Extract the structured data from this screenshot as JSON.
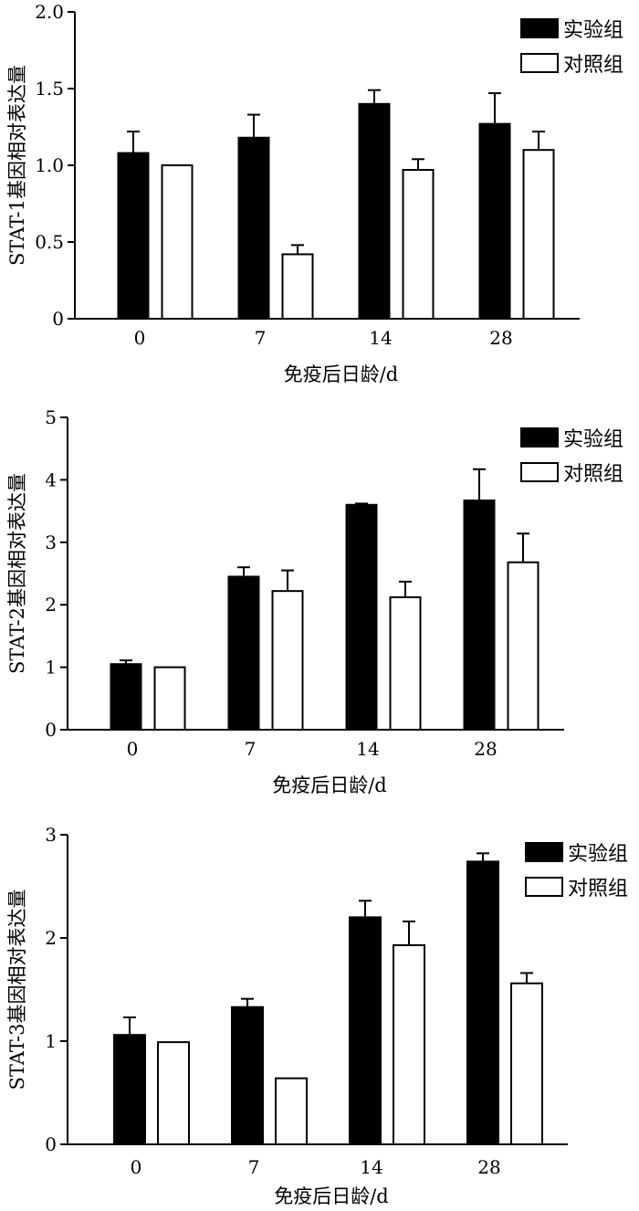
{
  "chart_data": [
    {
      "type": "bar",
      "ylabel": "STAT-1基因相对表达量",
      "xlabel": "免疫后日龄/d",
      "categories": [
        "0",
        "7",
        "14",
        "28"
      ],
      "ylim": [
        0,
        2.0
      ],
      "yticks": [
        0,
        0.5,
        1.0,
        1.5,
        2.0
      ],
      "ytick_labels": [
        "0",
        "0.5",
        "1.0",
        "1.5",
        "2.0"
      ],
      "legend": {
        "position": "top-right"
      },
      "series": [
        {
          "name": "实验组",
          "color": "#000000",
          "fill": "solid",
          "values": [
            1.08,
            1.18,
            1.4,
            1.27
          ],
          "errors": [
            0.14,
            0.15,
            0.09,
            0.2
          ]
        },
        {
          "name": "对照组",
          "color": "#000000",
          "fill": "hollow",
          "values": [
            1.0,
            0.42,
            0.97,
            1.1
          ],
          "errors": [
            0.0,
            0.06,
            0.07,
            0.12
          ]
        }
      ]
    },
    {
      "type": "bar",
      "ylabel": "STAT-2基因相对表达量",
      "xlabel": "免疫后日龄/d",
      "categories": [
        "0",
        "7",
        "14",
        "28"
      ],
      "ylim": [
        0,
        5
      ],
      "yticks": [
        0,
        1,
        2,
        3,
        4,
        5
      ],
      "ytick_labels": [
        "0",
        "1",
        "2",
        "3",
        "4",
        "5"
      ],
      "legend": {
        "position": "top-right"
      },
      "series": [
        {
          "name": "实验组",
          "color": "#000000",
          "fill": "solid",
          "values": [
            1.05,
            2.45,
            3.6,
            3.67
          ],
          "errors": [
            0.06,
            0.15,
            0.02,
            0.5
          ]
        },
        {
          "name": "对照组",
          "color": "#000000",
          "fill": "hollow",
          "values": [
            1.0,
            2.22,
            2.12,
            2.68
          ],
          "errors": [
            0.0,
            0.33,
            0.25,
            0.46
          ]
        }
      ]
    },
    {
      "type": "bar",
      "ylabel": "STAT-3基因相对表达量",
      "xlabel": "免疫后日龄/d",
      "categories": [
        "0",
        "7",
        "14",
        "28"
      ],
      "ylim": [
        0,
        3
      ],
      "yticks": [
        0,
        1,
        2,
        3
      ],
      "ytick_labels": [
        "0",
        "1",
        "2",
        "3"
      ],
      "legend": {
        "position": "top-right"
      },
      "series": [
        {
          "name": "实验组",
          "color": "#000000",
          "fill": "solid",
          "values": [
            1.06,
            1.33,
            2.2,
            2.74
          ],
          "errors": [
            0.17,
            0.08,
            0.16,
            0.08
          ]
        },
        {
          "name": "对照组",
          "color": "#000000",
          "fill": "hollow",
          "values": [
            0.99,
            0.64,
            1.93,
            1.56
          ],
          "errors": [
            0.0,
            0.0,
            0.23,
            0.1
          ]
        }
      ]
    }
  ]
}
